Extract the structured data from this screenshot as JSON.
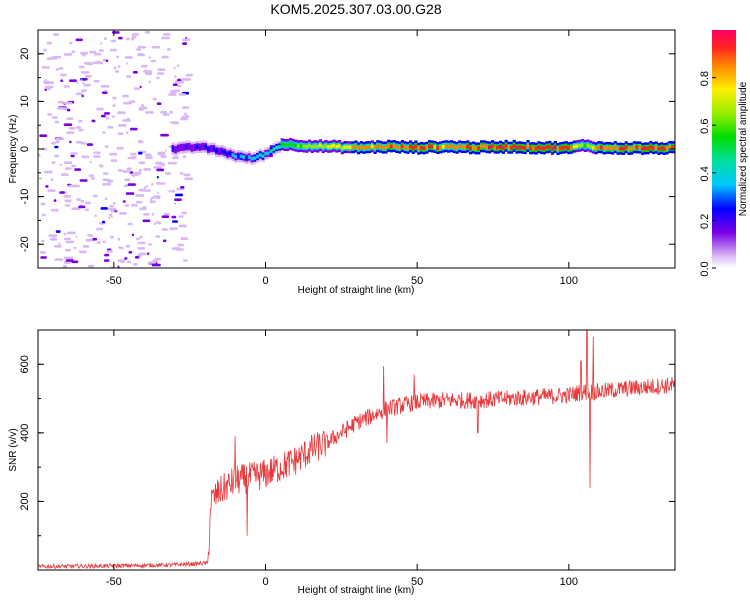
{
  "title": "KOM5.2025.307.03.00.G28",
  "chart_data": [
    {
      "type": "heatmap",
      "title": "KOM5.2025.307.03.00.G28",
      "xlabel": "Height of straight line (km)",
      "ylabel": "Frequency (Hz)",
      "xlim": [
        -75,
        135
      ],
      "ylim": [
        -25,
        25
      ],
      "x_ticks": [
        -50,
        0,
        50,
        100
      ],
      "y_ticks": [
        -20,
        -10,
        0,
        10,
        20
      ],
      "colorbar": {
        "label": "Normalized spectral amplitude",
        "range": [
          0.0,
          1.0
        ],
        "ticks": [
          "0.0",
          "0.2",
          "0.4",
          "0.6",
          "0.8"
        ]
      },
      "ridge": {
        "description_points_x": [
          -30,
          -22,
          -15,
          -10,
          -5,
          0,
          5,
          10,
          20,
          30,
          40,
          50,
          60,
          70,
          80,
          90,
          100,
          105,
          110,
          120,
          135
        ],
        "description_points_freq": [
          0,
          0.5,
          -0.5,
          -1.5,
          -2,
          -1,
          1,
          0.8,
          0.5,
          0.3,
          0.5,
          0.3,
          0.5,
          0.3,
          0.5,
          0.3,
          0.2,
          0.8,
          0.2,
          0.2,
          0.2
        ],
        "description_points_amp": [
          0.2,
          0.25,
          0.3,
          0.35,
          0.4,
          0.45,
          0.55,
          0.65,
          0.75,
          0.85,
          0.9,
          0.9,
          0.9,
          0.95,
          0.95,
          0.95,
          0.95,
          0.6,
          0.95,
          0.95,
          0.95
        ]
      },
      "noise_region_x": [
        -75,
        -30
      ]
    },
    {
      "type": "line",
      "xlabel": "Height of straight line (km)",
      "ylabel": "SNR (v/v)",
      "xlim": [
        -75,
        135
      ],
      "ylim": [
        0,
        700
      ],
      "x_ticks": [
        -50,
        0,
        50,
        100
      ],
      "y_ticks": [
        200,
        400,
        600
      ],
      "color": "#e8393c",
      "trend_x": [
        -75,
        -50,
        -30,
        -19,
        -18,
        -15,
        -10,
        -5,
        0,
        5,
        10,
        15,
        20,
        25,
        30,
        40,
        50,
        60,
        70,
        80,
        90,
        100,
        105,
        110,
        120,
        135
      ],
      "trend_y": [
        10,
        12,
        15,
        20,
        200,
        230,
        260,
        270,
        280,
        300,
        320,
        350,
        370,
        400,
        430,
        470,
        490,
        495,
        495,
        500,
        505,
        510,
        520,
        520,
        530,
        540
      ],
      "spikes": [
        {
          "x": -10,
          "y": 390
        },
        {
          "x": -6,
          "y": 100
        },
        {
          "x": 39,
          "y": 595
        },
        {
          "x": 40,
          "y": 370
        },
        {
          "x": 49,
          "y": 570
        },
        {
          "x": 70,
          "y": 400
        },
        {
          "x": 104,
          "y": 610
        },
        {
          "x": 106,
          "y": 700
        },
        {
          "x": 107,
          "y": 240
        },
        {
          "x": 108,
          "y": 680
        }
      ]
    }
  ]
}
